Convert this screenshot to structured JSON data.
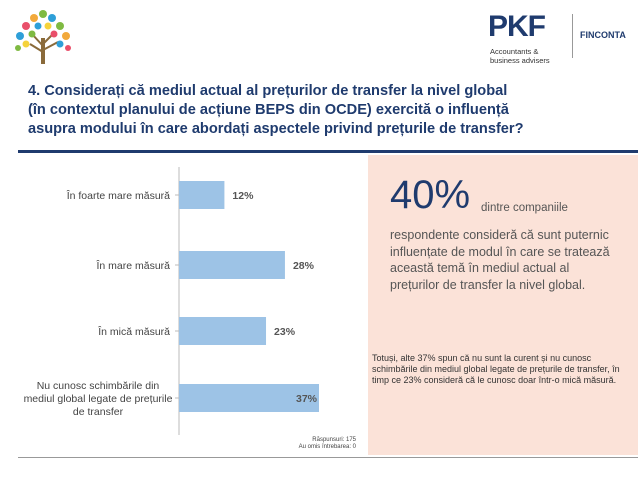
{
  "header": {
    "brand": "PKF",
    "brand_sub": "Accountants & business advisers",
    "partner": "FINCONTA",
    "colors": {
      "navy": "#1f3b6e",
      "bar": "#9dc3e6",
      "panel": "#fbe2d8"
    }
  },
  "title_lines": [
    "4. Considerați că mediul actual al prețurilor de transfer la nivel global",
    "(în contextul planului de acțiune BEPS din OCDE) exercită o influență",
    "asupra modului în care abordați aspectele privind prețurile de transfer?"
  ],
  "chart_data": {
    "type": "bar",
    "orientation": "horizontal",
    "categories": [
      "În foarte mare măsură",
      "În mare măsură",
      "În mică măsură",
      "Nu cunosc schimbările din mediul global legate de prețurile de transfer"
    ],
    "category_lines": [
      [
        "În foarte mare măsură"
      ],
      [
        "În mare măsură"
      ],
      [
        "În mică măsură"
      ],
      [
        "Nu cunosc schimbările din",
        "mediul global legate de prețurile",
        "de transfer"
      ]
    ],
    "values": [
      12,
      28,
      23,
      37
    ],
    "value_labels": [
      "12%",
      "28%",
      "23%",
      "37%"
    ],
    "xlim": [
      0,
      37
    ],
    "grid": false,
    "note_lines": [
      "Răspunsuri: 175",
      "Au omis întrebarea: 0"
    ]
  },
  "panel": {
    "big_value": "40%",
    "big_rest": "dintre companiile",
    "big_body": "respondente consideră că sunt puternic influențate de modul în care se tratează această temă în mediul actual al prețurilor de transfer la nivel global.",
    "small_body": "Totuși, alte 37% spun că nu sunt la curent și nu cunosc schimbările din mediul global legate de prețurile de transfer, în timp ce 23% consideră că le cunosc doar într-o mică măsură."
  }
}
